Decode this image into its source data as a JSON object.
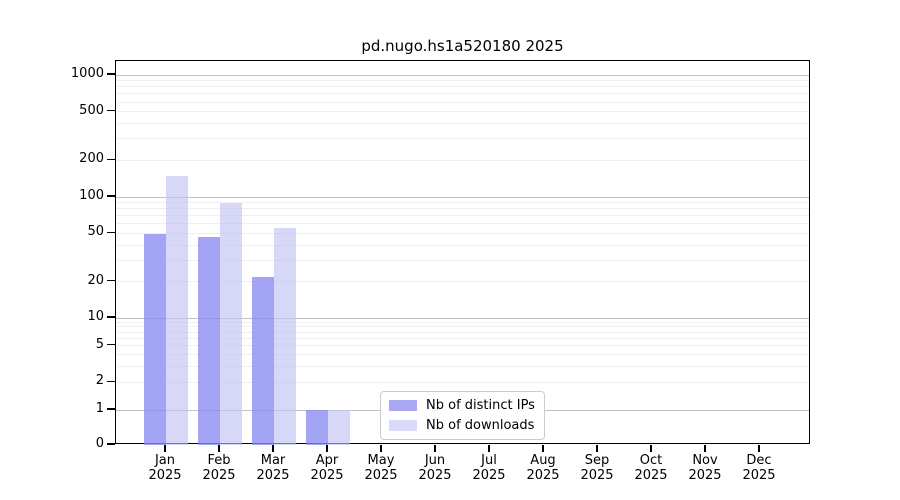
{
  "figure": {
    "title": "pd.nugo.hs1a520180 2025",
    "background_color": "#ffffff"
  },
  "chart_data": {
    "type": "bar",
    "title": "pd.nugo.hs1a520180 2025",
    "xlabel": "",
    "ylabel": "",
    "categories": [
      "Jan",
      "Feb",
      "Mar",
      "Apr",
      "May",
      "Jun",
      "Jul",
      "Aug",
      "Sep",
      "Oct",
      "Nov",
      "Dec"
    ],
    "category_year": "2025",
    "series": [
      {
        "key": "distinct-ips",
        "name": "Nb of distinct IPs",
        "color": "#a8a8f3",
        "bar_fill": "rgba(139,139,242,0.78)",
        "values": [
          49,
          47,
          22,
          1,
          0,
          0,
          0,
          0,
          0,
          0,
          0,
          0
        ]
      },
      {
        "key": "downloads",
        "name": "Nb of downloads",
        "color": "#d9d9f8",
        "bar_fill": "rgba(190,190,243,0.62)",
        "values": [
          150,
          90,
          55,
          1,
          0,
          0,
          0,
          0,
          0,
          0,
          0,
          0
        ]
      }
    ],
    "y_axis": {
      "ticks": [
        0,
        1,
        2,
        5,
        10,
        20,
        50,
        100,
        200,
        500,
        1000
      ],
      "scale": "log above 1, linear 0-1",
      "ylim": [
        0,
        1300
      ]
    },
    "grid": true,
    "legend_position": "bottom-center-inside"
  },
  "colors": {
    "grid_major": "#c2c2c2",
    "grid_minor": "#efefef",
    "axis": "#000000",
    "text": "#000000",
    "legend_border": "#cccccc",
    "legend_background": "#ffffff"
  }
}
